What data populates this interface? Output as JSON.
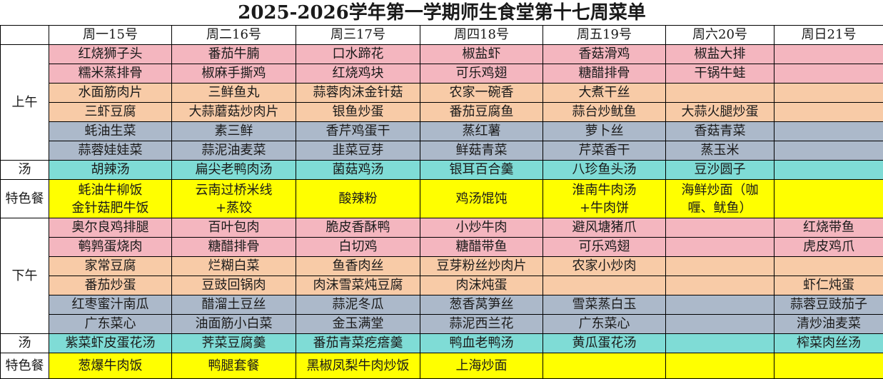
{
  "title": "2025-2026学年第一学期师生食堂第十七周菜单",
  "days": [
    "周一15号",
    "周二16号",
    "周三17号",
    "周四18号",
    "周五19号",
    "周六20号",
    "周日21号"
  ],
  "colors": {
    "meat": "#f4b6bf",
    "half_meat": "#f8cba7",
    "veg": "#acb9ca",
    "soup": "#7fdcd6",
    "special": "#ffff00"
  },
  "sections": [
    {
      "label": "上午",
      "rows": [
        {
          "type": "pink",
          "cells": [
            "红烧狮子头",
            "番茄牛腩",
            "口水蹄花",
            "椒盐虾",
            "香菇滑鸡",
            "椒盐大排",
            ""
          ]
        },
        {
          "type": "pink",
          "cells": [
            "糯米蒸排骨",
            "椒麻手撕鸡",
            "红烧鸡块",
            "可乐鸡翅",
            "糖醋排骨",
            "干锅牛蛙",
            ""
          ]
        },
        {
          "type": "peach",
          "cells": [
            "水面筋肉片",
            "三鲜鱼丸",
            "蒜蓉肉沫金针菇",
            "农家一碗香",
            "大煮干丝",
            "",
            ""
          ]
        },
        {
          "type": "peach",
          "cells": [
            "三虾豆腐",
            "大蒜蘑菇炒肉片",
            "银鱼炒蛋",
            "番茄豆腐鱼",
            "蒜台炒鱿鱼",
            "大蒜火腿炒蛋",
            ""
          ]
        },
        {
          "type": "gray",
          "cells": [
            "蚝油生菜",
            "素三鲜",
            "香芹鸡蛋干",
            "蒸红薯",
            "萝卜丝",
            "香菇青菜",
            ""
          ]
        },
        {
          "type": "gray",
          "cells": [
            "蒜蓉娃娃菜",
            "蒜泥油麦菜",
            "韭菜豆芽",
            "鲜菇青菜",
            "芹菜香干",
            "蒸玉米",
            ""
          ]
        }
      ]
    },
    {
      "label": "汤",
      "rows": [
        {
          "type": "cyan",
          "cells": [
            "胡辣汤",
            "扁尖老鸭肉汤",
            "菌菇鸡汤",
            "银耳百合羹",
            "八珍鱼头汤",
            "豆沙圆子",
            ""
          ]
        }
      ]
    },
    {
      "label": "特色餐",
      "rows": [
        {
          "type": "yellow special",
          "cells": [
            "蚝油牛柳饭\n金针菇肥牛饭",
            "云南过桥米线\n+蒸饺",
            "酸辣粉",
            "鸡汤馄饨",
            "淮南牛肉汤\n+牛肉饼",
            "海鲜炒面（咖\n喱、鱿鱼）",
            ""
          ]
        }
      ]
    },
    {
      "label": "下午",
      "rows": [
        {
          "type": "pink",
          "cells": [
            "奥尔良鸡排腿",
            "百叶包肉",
            "脆皮香酥鸭",
            "小炒牛肉",
            "避风塘猪爪",
            "",
            "红烧带鱼"
          ]
        },
        {
          "type": "pink",
          "cells": [
            "鹌鹑蛋烧肉",
            "糖醋排骨",
            "白切鸡",
            "糖醋带鱼",
            "可乐鸡翅",
            "",
            "虎皮鸡爪"
          ]
        },
        {
          "type": "peach",
          "cells": [
            "家常豆腐",
            "烂糊白菜",
            "鱼香肉丝",
            "豆芽粉丝炒肉片",
            "农家小炒肉",
            "",
            ""
          ]
        },
        {
          "type": "peach",
          "cells": [
            "番茄炒蛋",
            "豆豉回锅肉",
            "肉沫雪菜炖豆腐",
            "肉沫炖蛋",
            "",
            "",
            "虾仁炖蛋"
          ]
        },
        {
          "type": "gray",
          "cells": [
            "红枣蜜汁南瓜",
            "醋溜土豆丝",
            "蒜泥冬瓜",
            "葱香莴笋丝",
            "雪菜蒸白玉",
            "",
            "蒜蓉豆豉茄子"
          ]
        },
        {
          "type": "gray",
          "cells": [
            "广东菜心",
            "油面筋小白菜",
            "金玉满堂",
            "蒜泥西兰花",
            "广东菜心",
            "",
            "清炒油麦菜"
          ]
        }
      ]
    },
    {
      "label": "汤",
      "rows": [
        {
          "type": "cyan",
          "cells": [
            "紫菜虾皮蛋花汤",
            "荠菜豆腐羹",
            "番茄青菜疙瘩羹",
            "鸭血老鸭汤",
            "黄瓜蛋花汤",
            "",
            "榨菜肉丝汤"
          ]
        }
      ]
    },
    {
      "label": "特色餐",
      "rows": [
        {
          "type": "yellow special last",
          "cells": [
            "葱爆牛肉饭",
            "鸭腿套餐",
            "黑椒凤梨牛肉炒饭",
            "上海炒面",
            "",
            "",
            ""
          ]
        }
      ]
    }
  ]
}
